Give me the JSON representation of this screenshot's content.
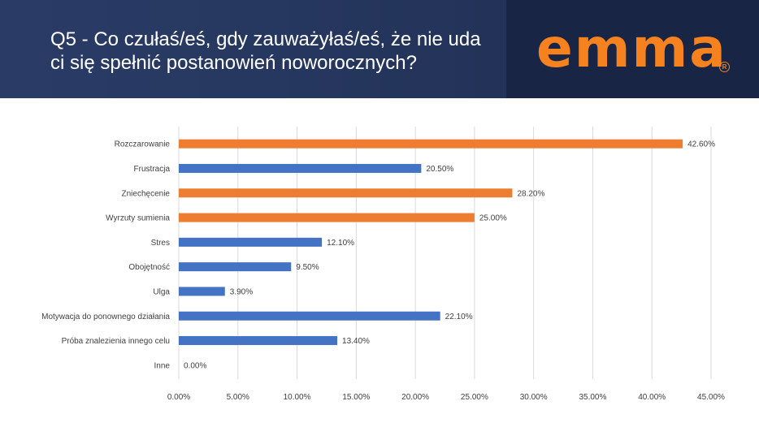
{
  "header": {
    "title_line1": "Q5 - Co czułaś/eś, gdy zauważyłaś/eś, że nie uda",
    "title_line2": "ci się spełnić postanowień noworocznych?",
    "logo_text": "emma",
    "logo_mark": "R"
  },
  "colors": {
    "header_bg": "#26375f",
    "logo_panel_bg": "#182544",
    "brand_orange": "#f5821f",
    "bar_orange": "#ed7d31",
    "bar_blue": "#4472c4",
    "grid": "#d9d9d9"
  },
  "chart_data": {
    "type": "bar",
    "orientation": "horizontal",
    "categories": [
      "Rozczarowanie",
      "Frustracja",
      "Zniechęcenie",
      "Wyrzuty sumienia",
      "Stres",
      "Obojętność",
      "Ulga",
      "Motywacja do ponownego działania",
      "Próba znalezienia innego celu",
      "Inne"
    ],
    "values": [
      42.6,
      20.5,
      28.2,
      25.0,
      12.1,
      9.5,
      3.9,
      22.1,
      13.4,
      0.0
    ],
    "value_labels": [
      "42.60%",
      "20.50%",
      "28.20%",
      "25.00%",
      "12.10%",
      "9.50%",
      "3.90%",
      "22.10%",
      "13.40%",
      "0.00%"
    ],
    "highlight": [
      true,
      false,
      true,
      true,
      false,
      false,
      false,
      false,
      false,
      false
    ],
    "xlim": [
      0,
      45
    ],
    "xticks": [
      0,
      5,
      10,
      15,
      20,
      25,
      30,
      35,
      40,
      45
    ],
    "xtick_labels": [
      "0.00%",
      "5.00%",
      "10.00%",
      "15.00%",
      "20.00%",
      "25.00%",
      "30.00%",
      "35.00%",
      "40.00%",
      "45.00%"
    ],
    "grid": true,
    "title": "",
    "xlabel": "",
    "ylabel": ""
  }
}
